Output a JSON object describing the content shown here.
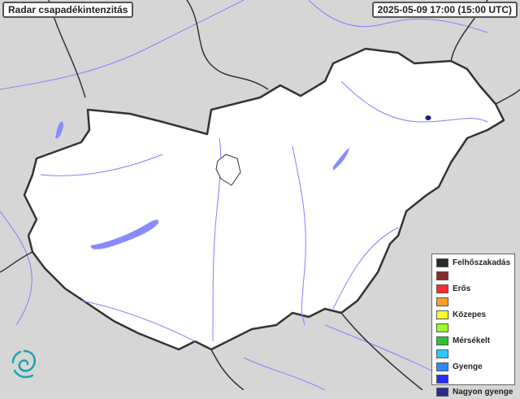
{
  "header": {
    "title": "Radar csapadékintenzitás",
    "timestamp": "2025-05-09 17:00 (15:00 UTC)"
  },
  "map": {
    "background_color": "#d8d8d8",
    "country_fill": "#ffffff",
    "border_color": "#333333",
    "river_color": "#7b7bff",
    "precipitation_cells": [
      {
        "intensity": "Nagyon gyenge",
        "color": "#1a1a8c"
      }
    ]
  },
  "legend": {
    "items": [
      {
        "label": "Felhőszakadás",
        "color": "#2b2b2b"
      },
      {
        "label": "",
        "color": "#8b2a2a"
      },
      {
        "label": "Erős",
        "color": "#ff2b2b"
      },
      {
        "label": "",
        "color": "#ff9a2b"
      },
      {
        "label": "Közepes",
        "color": "#ffff2b"
      },
      {
        "label": "",
        "color": "#9aff2b"
      },
      {
        "label": "Mérsékelt",
        "color": "#2bc42b"
      },
      {
        "label": "",
        "color": "#2bccff"
      },
      {
        "label": "Gyenge",
        "color": "#2b8cff"
      },
      {
        "label": "",
        "color": "#2b2bff"
      },
      {
        "label": "Nagyon gyenge",
        "color": "#2b2b8c"
      }
    ]
  },
  "logo": {
    "icon": "swirl-logo-icon",
    "color": "#1aa3b3"
  }
}
